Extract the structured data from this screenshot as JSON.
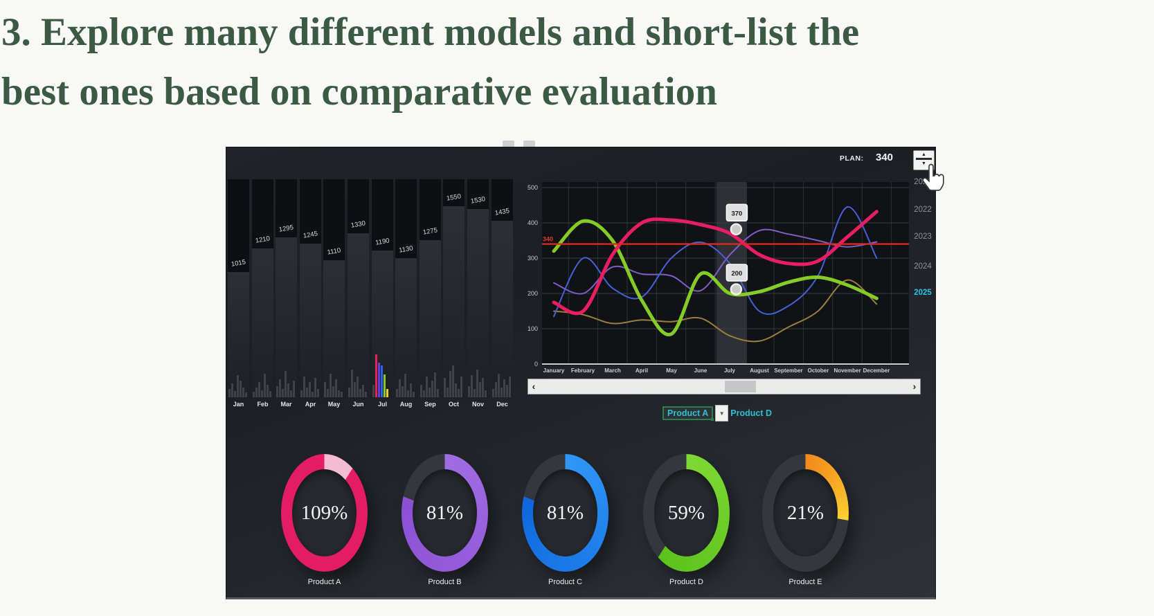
{
  "page": {
    "heading_line1": "3. Explore many different models and short-list the",
    "heading_line2": "best ones based on comparative evaluation"
  },
  "colors": {
    "heading_green": "#3c5a43",
    "teal_accent": "#2cc2d0",
    "active_year_cyan": "#2bc4ea",
    "plan_line_red": "#da2a1a"
  },
  "dashboard": {
    "top": {
      "plan_label": "PLAN:",
      "plan_value": "340"
    },
    "stepper": {
      "up": "▲",
      "down": "▼"
    },
    "icons": {
      "cursor": "hand-pointer-icon"
    },
    "years": {
      "items": [
        "2021",
        "2022",
        "2023",
        "2024",
        "2025"
      ],
      "active": "2025"
    },
    "scrollbar": {
      "left_arrow": "‹",
      "right_arrow": "›"
    },
    "selector": {
      "value": "Product A",
      "arrow": "▼",
      "secondary": "Product D"
    }
  },
  "chart_data": [
    {
      "type": "bar",
      "title": "Monthly totals with mini distribution bars",
      "categories": [
        "Jan",
        "Feb",
        "Mar",
        "Apr",
        "May",
        "Jun",
        "Jul",
        "Aug",
        "Sep",
        "Oct",
        "Nov",
        "Dec"
      ],
      "values": [
        1015,
        1210,
        1295,
        1245,
        1110,
        1330,
        1190,
        1130,
        1275,
        1550,
        1530,
        1435
      ],
      "ylim": [
        0,
        1700
      ],
      "mini_bars": [
        [
          12,
          20,
          9,
          32,
          24,
          14,
          7
        ],
        [
          8,
          14,
          22,
          10,
          34,
          18,
          9
        ],
        [
          16,
          26,
          12,
          38,
          20,
          10,
          24
        ],
        [
          10,
          30,
          14,
          22,
          8,
          28,
          12
        ],
        [
          22,
          12,
          34,
          16,
          26,
          10,
          8
        ],
        [
          14,
          40,
          22,
          30,
          12,
          18,
          8
        ],
        [
          18,
          62,
          50,
          46,
          33,
          12
        ],
        [
          12,
          26,
          16,
          34,
          10,
          20,
          8
        ],
        [
          18,
          10,
          30,
          14,
          24,
          36,
          12
        ],
        [
          28,
          14,
          38,
          46,
          20,
          12,
          30
        ],
        [
          16,
          32,
          12,
          40,
          22,
          28,
          10
        ],
        [
          12,
          22,
          34,
          14,
          26,
          18,
          30
        ]
      ],
      "mini_colors": {
        "6": [
          "#3d4148",
          "#e6215c",
          "#5b43e0",
          "#2f62e8",
          "#84cc1e",
          "#f2cb2e"
        ]
      }
    },
    {
      "type": "line",
      "x": [
        "January",
        "February",
        "March",
        "April",
        "May",
        "June",
        "July",
        "August",
        "September",
        "October",
        "November",
        "December"
      ],
      "ylim": [
        0,
        500
      ],
      "y_ticks": [
        0,
        100,
        200,
        300,
        400,
        500
      ],
      "plan_value": 340,
      "plan_label": "340",
      "highlight_month_index": 6,
      "grid": true,
      "tooltips": [
        {
          "month_index": 6,
          "value": 370
        },
        {
          "month_index": 6,
          "value": 200
        }
      ],
      "series": [
        {
          "name": "tan",
          "color": "#97803c",
          "width": 2,
          "values": [
            150,
            140,
            115,
            125,
            120,
            130,
            80,
            65,
            105,
            150,
            238,
            170
          ]
        },
        {
          "name": "purple",
          "color": "#7e5fc8",
          "width": 2,
          "values": [
            230,
            200,
            275,
            255,
            250,
            208,
            310,
            378,
            368,
            350,
            332,
            346
          ]
        },
        {
          "name": "blue",
          "color": "#4663d6",
          "width": 2,
          "values": [
            135,
            300,
            215,
            190,
            300,
            345,
            285,
            150,
            165,
            250,
            445,
            300
          ]
        },
        {
          "name": "green",
          "color": "#85cc28",
          "width": 5,
          "values": [
            320,
            405,
            350,
            180,
            85,
            255,
            200,
            205,
            232,
            246,
            224,
            186
          ]
        },
        {
          "name": "pink",
          "color": "#e81e62",
          "width": 5,
          "values": [
            175,
            150,
            310,
            400,
            408,
            395,
            370,
            310,
            285,
            292,
            360,
            432
          ]
        }
      ]
    },
    {
      "type": "donut-gauges",
      "items": [
        {
          "label": "Product A",
          "value": 109,
          "display": "109%",
          "color": "#e31c63",
          "overflow_color": "#f5bbd2"
        },
        {
          "label": "Product B",
          "value": 81,
          "display": "81%",
          "color": "#a06ce2",
          "color2": "#8b4fd4"
        },
        {
          "label": "Product C",
          "value": 81,
          "display": "81%",
          "color": "#2f97f7",
          "color2": "#0d66dd"
        },
        {
          "label": "Product D",
          "value": 59,
          "display": "59%",
          "color": "#7fd834",
          "color2": "#5cc21e"
        },
        {
          "label": "Product E",
          "value": 21,
          "display": "21%",
          "color": "#f28a1c",
          "color2": "#fcd22f",
          "arc_degrees": 100
        }
      ]
    }
  ]
}
